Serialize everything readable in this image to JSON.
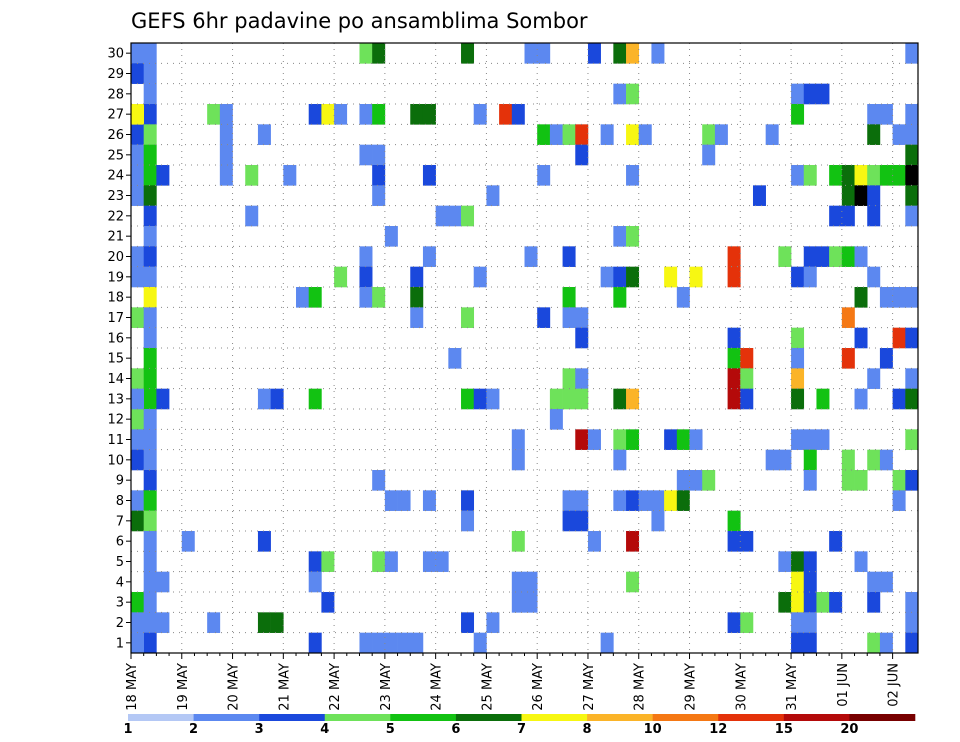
{
  "chart_data": {
    "type": "heatmap",
    "title": "GEFS 6hr padavine po ansamblima Sombor",
    "xlabel": "",
    "ylabel": "",
    "y_ticks": [
      "1",
      "2",
      "3",
      "4",
      "5",
      "6",
      "7",
      "8",
      "9",
      "10",
      "11",
      "12",
      "13",
      "14",
      "15",
      "16",
      "17",
      "18",
      "19",
      "20",
      "21",
      "22",
      "23",
      "24",
      "25",
      "26",
      "27",
      "28",
      "29",
      "30"
    ],
    "x_ticks": [
      "18 MAY",
      "19 MAY",
      "20 MAY",
      "21 MAY",
      "22 MAY",
      "23 MAY",
      "24 MAY",
      "25 MAY",
      "26 MAY",
      "27 MAY",
      "28 MAY",
      "29 MAY",
      "30 MAY",
      "31 MAY",
      "01 JUN",
      "02 JUN"
    ],
    "time_steps": 62,
    "members": 30,
    "grid": true,
    "legend": {
      "position": "bottom",
      "boundaries": [
        "1",
        "2",
        "3",
        "4",
        "5",
        "6",
        "7",
        "8",
        "10",
        "12",
        "15",
        "20"
      ],
      "colors": [
        "#b4c8f5",
        "#5c88f0",
        "#1a48dc",
        "#6ee25a",
        "#12c212",
        "#0b6e0b",
        "#f7f712",
        "#fbb428",
        "#f57814",
        "#e4320a",
        "#b40a0a",
        "#780000"
      ]
    },
    "cells": [
      [
        0,
        30,
        1
      ],
      [
        0,
        29,
        2
      ],
      [
        0,
        26,
        2
      ],
      [
        0,
        24,
        1
      ],
      [
        0,
        25,
        1
      ],
      [
        0,
        23,
        1
      ],
      [
        0,
        20,
        1
      ],
      [
        0,
        19,
        1
      ],
      [
        0,
        17,
        3
      ],
      [
        0,
        14,
        3
      ],
      [
        0,
        12,
        3
      ],
      [
        0,
        11,
        1
      ],
      [
        0,
        10,
        2
      ],
      [
        0,
        8,
        1
      ],
      [
        0,
        7,
        5
      ],
      [
        0,
        3,
        4
      ],
      [
        0,
        2,
        1
      ],
      [
        1,
        30,
        1
      ],
      [
        1,
        29,
        1
      ],
      [
        1,
        28,
        1
      ],
      [
        1,
        27,
        2
      ],
      [
        1,
        26,
        3
      ],
      [
        1,
        25,
        4
      ],
      [
        1,
        24,
        4
      ],
      [
        1,
        23,
        5
      ],
      [
        1,
        22,
        2
      ],
      [
        1,
        21,
        1
      ],
      [
        1,
        20,
        2
      ],
      [
        1,
        19,
        1
      ],
      [
        1,
        18,
        6
      ],
      [
        1,
        17,
        1
      ],
      [
        1,
        16,
        1
      ],
      [
        1,
        15,
        4
      ],
      [
        1,
        14,
        4
      ],
      [
        1,
        13,
        4
      ],
      [
        1,
        12,
        1
      ],
      [
        1,
        11,
        1
      ],
      [
        1,
        10,
        1
      ],
      [
        1,
        9,
        2
      ],
      [
        1,
        8,
        4
      ],
      [
        1,
        7,
        3
      ],
      [
        1,
        6,
        1
      ],
      [
        1,
        5,
        1
      ],
      [
        1,
        4,
        1
      ],
      [
        1,
        3,
        1
      ],
      [
        1,
        2,
        1
      ],
      [
        1,
        1,
        2
      ],
      [
        2,
        24,
        2
      ],
      [
        2,
        13,
        2
      ],
      [
        2,
        4,
        1
      ],
      [
        2,
        2,
        1
      ],
      [
        0,
        27,
        6
      ],
      [
        0,
        13,
        1
      ],
      [
        0,
        1,
        1
      ],
      [
        4,
        6,
        1
      ],
      [
        6,
        27,
        3
      ],
      [
        7,
        27,
        1
      ],
      [
        6,
        2,
        1
      ],
      [
        7,
        25,
        1
      ],
      [
        7,
        24,
        1
      ],
      [
        7,
        26,
        1
      ],
      [
        9,
        24,
        3
      ],
      [
        9,
        22,
        1
      ],
      [
        10,
        26,
        1
      ],
      [
        10,
        13,
        1
      ],
      [
        10,
        6,
        2
      ],
      [
        10,
        2,
        5
      ],
      [
        11,
        2,
        5
      ],
      [
        11,
        13,
        2
      ],
      [
        12,
        24,
        1
      ],
      [
        13,
        18,
        1
      ],
      [
        14,
        27,
        2
      ],
      [
        14,
        18,
        4
      ],
      [
        14,
        13,
        4
      ],
      [
        14,
        5,
        2
      ],
      [
        14,
        4,
        1
      ],
      [
        14,
        1,
        2
      ],
      [
        15,
        27,
        6
      ],
      [
        15,
        5,
        3
      ],
      [
        15,
        3,
        2
      ],
      [
        16,
        27,
        1
      ],
      [
        16,
        19,
        3
      ],
      [
        18,
        30,
        3
      ],
      [
        18,
        27,
        1
      ],
      [
        18,
        25,
        1
      ],
      [
        18,
        20,
        1
      ],
      [
        18,
        19,
        2
      ],
      [
        18,
        18,
        1
      ],
      [
        18,
        1,
        1
      ],
      [
        19,
        30,
        5
      ],
      [
        19,
        27,
        4
      ],
      [
        19,
        25,
        1
      ],
      [
        19,
        24,
        2
      ],
      [
        19,
        23,
        1
      ],
      [
        19,
        18,
        3
      ],
      [
        19,
        9,
        1
      ],
      [
        19,
        5,
        3
      ],
      [
        19,
        1,
        1
      ],
      [
        20,
        21,
        1
      ],
      [
        20,
        8,
        1
      ],
      [
        20,
        5,
        1
      ],
      [
        20,
        1,
        1
      ],
      [
        21,
        8,
        1
      ],
      [
        21,
        1,
        1
      ],
      [
        22,
        27,
        5
      ],
      [
        22,
        19,
        2
      ],
      [
        22,
        18,
        5
      ],
      [
        22,
        17,
        1
      ],
      [
        22,
        1,
        1
      ],
      [
        23,
        27,
        5
      ],
      [
        23,
        24,
        2
      ],
      [
        23,
        20,
        1
      ],
      [
        23,
        8,
        1
      ],
      [
        23,
        5,
        1
      ],
      [
        24,
        5,
        1
      ],
      [
        24,
        22,
        1
      ],
      [
        25,
        22,
        1
      ],
      [
        25,
        15,
        1
      ],
      [
        26,
        22,
        3
      ],
      [
        26,
        17,
        3
      ],
      [
        26,
        8,
        2
      ],
      [
        26,
        7,
        1
      ],
      [
        26,
        2,
        2
      ],
      [
        26,
        30,
        5
      ],
      [
        26,
        13,
        4
      ],
      [
        27,
        13,
        2
      ],
      [
        27,
        19,
        1
      ],
      [
        27,
        27,
        1
      ],
      [
        27,
        1,
        1
      ],
      [
        28,
        23,
        1
      ],
      [
        28,
        13,
        1
      ],
      [
        28,
        2,
        1
      ],
      [
        29,
        27,
        9
      ],
      [
        30,
        27,
        2
      ],
      [
        30,
        11,
        1
      ],
      [
        30,
        10,
        1
      ],
      [
        30,
        6,
        3
      ],
      [
        30,
        4,
        1
      ],
      [
        30,
        3,
        1
      ],
      [
        31,
        30,
        1
      ],
      [
        31,
        20,
        1
      ],
      [
        31,
        4,
        1
      ],
      [
        31,
        3,
        1
      ],
      [
        32,
        30,
        1
      ],
      [
        32,
        26,
        4
      ],
      [
        32,
        24,
        1
      ],
      [
        32,
        17,
        2
      ],
      [
        33,
        26,
        1
      ],
      [
        33,
        13,
        3
      ],
      [
        33,
        12,
        1
      ],
      [
        34,
        26,
        3
      ],
      [
        34,
        20,
        2
      ],
      [
        34,
        18,
        4
      ],
      [
        34,
        17,
        1
      ],
      [
        34,
        14,
        3
      ],
      [
        34,
        13,
        3
      ],
      [
        34,
        8,
        1
      ],
      [
        34,
        7,
        2
      ],
      [
        35,
        26,
        9
      ],
      [
        35,
        25,
        2
      ],
      [
        35,
        17,
        1
      ],
      [
        35,
        16,
        2
      ],
      [
        35,
        14,
        1
      ],
      [
        35,
        13,
        3
      ],
      [
        35,
        11,
        10
      ],
      [
        35,
        8,
        1
      ],
      [
        35,
        7,
        2
      ],
      [
        36,
        30,
        2
      ],
      [
        36,
        11,
        1
      ],
      [
        36,
        6,
        1
      ],
      [
        37,
        26,
        1
      ],
      [
        37,
        19,
        1
      ],
      [
        37,
        1,
        1
      ],
      [
        38,
        30,
        5
      ],
      [
        38,
        28,
        1
      ],
      [
        38,
        21,
        1
      ],
      [
        38,
        19,
        2
      ],
      [
        38,
        18,
        4
      ],
      [
        38,
        13,
        5
      ],
      [
        38,
        11,
        3
      ],
      [
        38,
        10,
        1
      ],
      [
        38,
        8,
        1
      ],
      [
        39,
        30,
        7
      ],
      [
        39,
        28,
        3
      ],
      [
        39,
        26,
        6
      ],
      [
        39,
        24,
        1
      ],
      [
        39,
        21,
        3
      ],
      [
        39,
        19,
        5
      ],
      [
        39,
        13,
        7
      ],
      [
        39,
        11,
        4
      ],
      [
        39,
        8,
        2
      ],
      [
        39,
        6,
        10
      ],
      [
        39,
        4,
        3
      ],
      [
        40,
        26,
        1
      ],
      [
        40,
        8,
        1
      ],
      [
        41,
        30,
        1
      ],
      [
        41,
        8,
        1
      ],
      [
        41,
        7,
        1
      ],
      [
        42,
        19,
        6
      ],
      [
        42,
        11,
        2
      ],
      [
        42,
        8,
        6
      ],
      [
        43,
        18,
        1
      ],
      [
        43,
        11,
        4
      ],
      [
        43,
        9,
        1
      ],
      [
        43,
        8,
        5
      ],
      [
        44,
        19,
        6
      ],
      [
        44,
        11,
        1
      ],
      [
        44,
        9,
        1
      ],
      [
        45,
        26,
        3
      ],
      [
        45,
        25,
        1
      ],
      [
        45,
        9,
        3
      ],
      [
        46,
        26,
        1
      ],
      [
        47,
        20,
        9
      ],
      [
        47,
        19,
        9
      ],
      [
        47,
        16,
        2
      ],
      [
        47,
        15,
        4
      ],
      [
        47,
        14,
        10
      ],
      [
        47,
        13,
        10
      ],
      [
        47,
        7,
        4
      ],
      [
        47,
        6,
        2
      ],
      [
        47,
        2,
        2
      ],
      [
        48,
        15,
        9
      ],
      [
        48,
        14,
        3
      ],
      [
        48,
        13,
        2
      ],
      [
        48,
        6,
        2
      ],
      [
        48,
        2,
        3
      ],
      [
        49,
        23,
        2
      ],
      [
        50,
        26,
        1
      ],
      [
        50,
        10,
        1
      ],
      [
        51,
        20,
        3
      ],
      [
        51,
        10,
        1
      ],
      [
        51,
        5,
        1
      ],
      [
        51,
        3,
        5
      ],
      [
        52,
        28,
        1
      ],
      [
        52,
        27,
        4
      ],
      [
        52,
        24,
        1
      ],
      [
        52,
        19,
        2
      ],
      [
        52,
        16,
        3
      ],
      [
        52,
        15,
        1
      ],
      [
        52,
        14,
        7
      ],
      [
        52,
        13,
        5
      ],
      [
        52,
        11,
        1
      ],
      [
        52,
        5,
        5
      ],
      [
        52,
        4,
        6
      ],
      [
        52,
        3,
        6
      ],
      [
        52,
        2,
        1
      ],
      [
        52,
        1,
        2
      ],
      [
        53,
        28,
        2
      ],
      [
        53,
        24,
        3
      ],
      [
        53,
        20,
        2
      ],
      [
        53,
        19,
        1
      ],
      [
        53,
        11,
        1
      ],
      [
        53,
        10,
        4
      ],
      [
        53,
        9,
        1
      ],
      [
        53,
        5,
        2
      ],
      [
        53,
        4,
        2
      ],
      [
        53,
        3,
        2
      ],
      [
        53,
        2,
        1
      ],
      [
        53,
        1,
        2
      ],
      [
        54,
        28,
        2
      ],
      [
        54,
        20,
        2
      ],
      [
        54,
        13,
        4
      ],
      [
        54,
        11,
        1
      ],
      [
        54,
        3,
        3
      ],
      [
        55,
        24,
        4
      ],
      [
        55,
        22,
        2
      ],
      [
        55,
        20,
        3
      ],
      [
        55,
        6,
        2
      ],
      [
        55,
        3,
        2
      ],
      [
        56,
        24,
        5
      ],
      [
        56,
        23,
        5
      ],
      [
        56,
        22,
        2
      ],
      [
        56,
        20,
        4
      ],
      [
        56,
        17,
        8
      ],
      [
        56,
        15,
        9
      ],
      [
        56,
        10,
        3
      ],
      [
        56,
        9,
        3
      ],
      [
        57,
        24,
        6
      ],
      [
        57,
        23,
        14
      ],
      [
        57,
        20,
        1
      ],
      [
        57,
        18,
        5
      ],
      [
        57,
        16,
        2
      ],
      [
        57,
        13,
        1
      ],
      [
        57,
        9,
        3
      ],
      [
        57,
        5,
        1
      ],
      [
        58,
        27,
        1
      ],
      [
        58,
        26,
        5
      ],
      [
        58,
        24,
        3
      ],
      [
        58,
        23,
        2
      ],
      [
        58,
        22,
        2
      ],
      [
        58,
        19,
        1
      ],
      [
        58,
        14,
        1
      ],
      [
        58,
        10,
        3
      ],
      [
        58,
        4,
        1
      ],
      [
        58,
        3,
        2
      ],
      [
        58,
        1,
        3
      ],
      [
        59,
        27,
        1
      ],
      [
        59,
        24,
        4
      ],
      [
        59,
        18,
        1
      ],
      [
        59,
        15,
        2
      ],
      [
        59,
        10,
        1
      ],
      [
        59,
        4,
        1
      ],
      [
        59,
        1,
        1
      ],
      [
        60,
        26,
        1
      ],
      [
        60,
        24,
        4
      ],
      [
        60,
        18,
        1
      ],
      [
        60,
        16,
        9
      ],
      [
        60,
        13,
        2
      ],
      [
        60,
        9,
        3
      ],
      [
        60,
        8,
        1
      ],
      [
        61,
        30,
        1
      ],
      [
        61,
        27,
        1
      ],
      [
        61,
        26,
        1
      ],
      [
        61,
        25,
        5
      ],
      [
        61,
        24,
        14
      ],
      [
        61,
        23,
        5
      ],
      [
        61,
        22,
        1
      ],
      [
        61,
        18,
        1
      ],
      [
        61,
        16,
        2
      ],
      [
        61,
        14,
        1
      ],
      [
        61,
        13,
        5
      ],
      [
        61,
        11,
        3
      ],
      [
        61,
        9,
        2
      ],
      [
        61,
        3,
        1
      ],
      [
        61,
        2,
        1
      ],
      [
        61,
        1,
        2
      ]
    ]
  }
}
